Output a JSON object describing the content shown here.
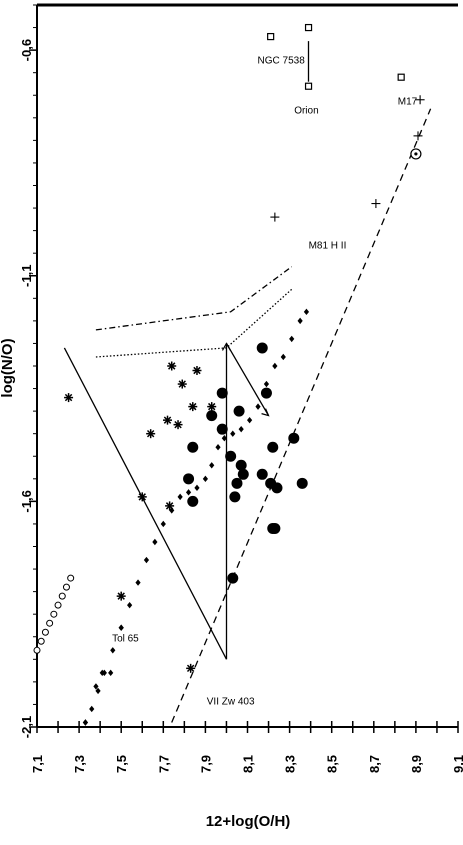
{
  "chart_data": {
    "type": "scatter",
    "xlabel": "12+log(O/H)",
    "ylabel": "log(N/O)",
    "xlim": [
      7.1,
      9.1
    ],
    "ylim": [
      -2.1,
      -0.5
    ],
    "x_ticks": [
      "7,1",
      "7,3",
      "7,5",
      "7,7",
      "7,9",
      "8,1",
      "8,3",
      "8,5",
      "8,7",
      "8,9",
      "9,1"
    ],
    "y_ticks": [
      {
        "value": -0.6,
        "label": "-0,6"
      },
      {
        "value": -1.1,
        "label": "-1,1"
      },
      {
        "value": -1.6,
        "label": "-1,6"
      },
      {
        "value": -2.1,
        "label": "-2,1"
      }
    ],
    "grid": false,
    "annotations": [
      {
        "text": "NGC 7538",
        "x": 8.26,
        "y": -0.63
      },
      {
        "text": "Orion",
        "x": 8.38,
        "y": -0.74
      },
      {
        "text": "M17",
        "x": 8.86,
        "y": -0.72
      },
      {
        "text": "M81 H II",
        "x": 8.48,
        "y": -1.04
      },
      {
        "text": "Tol 65",
        "x": 7.52,
        "y": -1.91
      },
      {
        "text": "VII Zw 403",
        "x": 8.02,
        "y": -2.05
      }
    ],
    "series": [
      {
        "marker": "filled-circle",
        "points": [
          [
            8.17,
            -1.26
          ],
          [
            7.98,
            -1.36
          ],
          [
            7.93,
            -1.41
          ],
          [
            7.98,
            -1.44
          ],
          [
            8.06,
            -1.4
          ],
          [
            8.19,
            -1.36
          ],
          [
            7.84,
            -1.48
          ],
          [
            8.02,
            -1.5
          ],
          [
            8.07,
            -1.52
          ],
          [
            8.22,
            -1.48
          ],
          [
            8.32,
            -1.46
          ],
          [
            8.08,
            -1.54
          ],
          [
            8.17,
            -1.54
          ],
          [
            8.21,
            -1.56
          ],
          [
            7.82,
            -1.55
          ],
          [
            8.05,
            -1.56
          ],
          [
            8.24,
            -1.57
          ],
          [
            8.36,
            -1.56
          ],
          [
            8.04,
            -1.59
          ],
          [
            7.84,
            -1.6
          ],
          [
            8.23,
            -1.66
          ],
          [
            8.22,
            -1.66
          ],
          [
            8.03,
            -1.77
          ]
        ]
      },
      {
        "marker": "asterisk",
        "points": [
          [
            7.25,
            -1.37
          ],
          [
            7.74,
            -1.3
          ],
          [
            7.86,
            -1.31
          ],
          [
            7.79,
            -1.34
          ],
          [
            7.84,
            -1.39
          ],
          [
            7.93,
            -1.39
          ],
          [
            7.72,
            -1.42
          ],
          [
            7.77,
            -1.43
          ],
          [
            7.64,
            -1.45
          ],
          [
            7.6,
            -1.59
          ],
          [
            7.73,
            -1.61
          ],
          [
            7.5,
            -1.81
          ],
          [
            7.83,
            -1.97
          ]
        ]
      },
      {
        "marker": "open-square",
        "points": [
          [
            8.21,
            -0.57
          ],
          [
            8.39,
            -0.55
          ],
          [
            8.39,
            -0.68
          ],
          [
            8.83,
            -0.66
          ]
        ]
      },
      {
        "marker": "plus",
        "points": [
          [
            8.23,
            -0.97
          ],
          [
            8.71,
            -0.94
          ],
          [
            8.92,
            -0.71
          ],
          [
            8.91,
            -0.79
          ]
        ]
      },
      {
        "marker": "circled-dot",
        "points": [
          [
            8.9,
            -0.83
          ]
        ]
      },
      {
        "marker": "open-circle",
        "points": [
          [
            7.1,
            -1.93
          ],
          [
            7.12,
            -1.91
          ],
          [
            7.14,
            -1.89
          ],
          [
            7.16,
            -1.87
          ],
          [
            7.18,
            -1.85
          ],
          [
            7.2,
            -1.83
          ],
          [
            7.22,
            -1.81
          ],
          [
            7.24,
            -1.79
          ],
          [
            7.26,
            -1.77
          ]
        ]
      },
      {
        "marker": "diamond-curve",
        "points": [
          [
            7.33,
            -2.09
          ],
          [
            7.36,
            -2.06
          ],
          [
            7.39,
            -2.02
          ],
          [
            7.42,
            -1.98
          ],
          [
            7.46,
            -1.93
          ],
          [
            7.5,
            -1.88
          ],
          [
            7.54,
            -1.83
          ],
          [
            7.58,
            -1.78
          ],
          [
            7.62,
            -1.73
          ],
          [
            7.66,
            -1.69
          ],
          [
            7.7,
            -1.65
          ],
          [
            7.74,
            -1.62
          ],
          [
            7.78,
            -1.59
          ],
          [
            7.82,
            -1.58
          ],
          [
            7.86,
            -1.57
          ],
          [
            7.9,
            -1.55
          ],
          [
            7.93,
            -1.52
          ],
          [
            7.96,
            -1.48
          ],
          [
            7.99,
            -1.46
          ],
          [
            8.03,
            -1.45
          ],
          [
            8.07,
            -1.44
          ],
          [
            8.11,
            -1.42
          ],
          [
            8.15,
            -1.39
          ],
          [
            8.19,
            -1.34
          ],
          [
            8.23,
            -1.3
          ],
          [
            8.27,
            -1.28
          ],
          [
            8.31,
            -1.24
          ],
          [
            8.35,
            -1.2
          ],
          [
            8.38,
            -1.18
          ]
        ]
      },
      {
        "marker": "diamond",
        "points": [
          [
            7.38,
            -2.01
          ],
          [
            7.41,
            -1.98
          ],
          [
            7.45,
            -1.98
          ],
          [
            7.5,
            -1.88
          ],
          [
            7.33,
            -2.09
          ]
        ]
      },
      {
        "line": "dashed",
        "points": [
          [
            7.74,
            -2.09
          ],
          [
            8.97,
            -0.73
          ]
        ]
      },
      {
        "line": "solid",
        "points": [
          [
            7.23,
            -1.26
          ],
          [
            8.0,
            -1.95
          ]
        ]
      },
      {
        "line": "solid",
        "points": [
          [
            8.0,
            -1.95
          ],
          [
            8.0,
            -1.25
          ]
        ]
      },
      {
        "line": "solid",
        "points": [
          [
            8.0,
            -1.25
          ],
          [
            8.2,
            -1.41
          ]
        ]
      },
      {
        "line": "dash-dot",
        "points": [
          [
            7.38,
            -1.22
          ],
          [
            8.02,
            -1.18
          ],
          [
            8.31,
            -1.08
          ]
        ]
      },
      {
        "line": "dotted",
        "points": [
          [
            7.38,
            -1.28
          ],
          [
            8.0,
            -1.26
          ],
          [
            8.31,
            -1.13
          ]
        ]
      },
      {
        "line": "solid",
        "points": [
          [
            8.39,
            -0.58
          ],
          [
            8.39,
            -0.67
          ]
        ]
      }
    ]
  }
}
